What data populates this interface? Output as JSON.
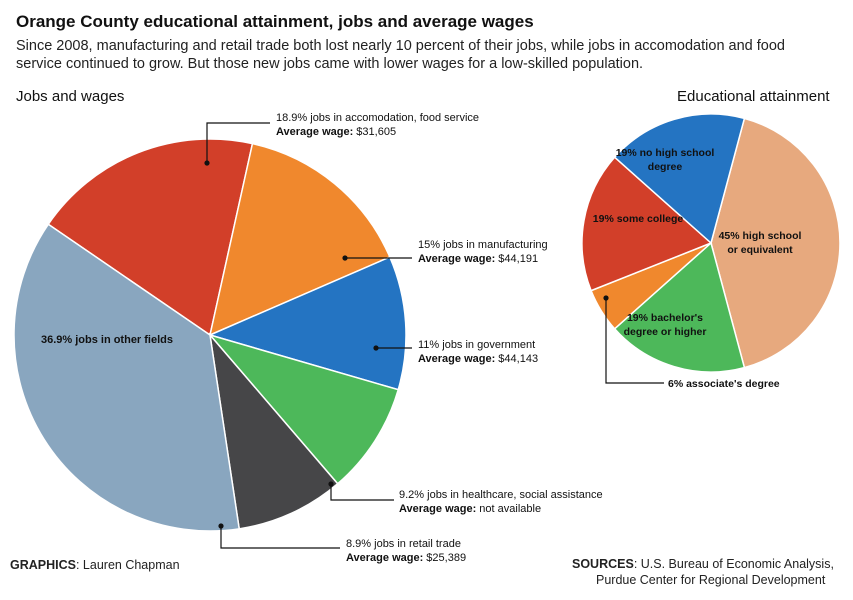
{
  "header": {
    "title": "Orange County educational attainment, jobs and average wages",
    "subtitle": "Since 2008, manufacturing and retail trade both lost nearly 10 percent of their jobs, while jobs in accomodation and food service continued to grow. But those new jobs came with lower wages for a low-skilled population."
  },
  "footer": {
    "graphics_label": "GRAPHICS",
    "graphics_name": ": Lauren Chapman",
    "sources_label": "SOURCES",
    "sources_line1": ": U.S. Bureau of Economic Analysis,",
    "sources_line2": "Purdue Center for Regional Development"
  },
  "chart_data": [
    {
      "type": "pie",
      "title": "Jobs and wages",
      "slices": [
        {
          "label": "18.9% jobs in accomodation, food service",
          "value": 18.9,
          "wage_label": "Average wage:",
          "wage": "$31,605",
          "color": "#d23f29"
        },
        {
          "label": "15% jobs in manufacturing",
          "value": 15,
          "wage_label": "Average wage:",
          "wage": "$44,191",
          "color": "#f0882d"
        },
        {
          "label": "11% jobs in government",
          "value": 11,
          "wage_label": "Average wage:",
          "wage": "$44,143",
          "color": "#2474c2"
        },
        {
          "label": "9.2% jobs in healthcare, social assistance",
          "value": 9.2,
          "wage_label": "Average wage:",
          "wage": "not available",
          "color": "#4db85a"
        },
        {
          "label": "8.9% jobs in retail trade",
          "value": 8.9,
          "wage_label": "Average wage:",
          "wage": "$25,389",
          "color": "#464648"
        },
        {
          "label": "36.9% jobs in other fields",
          "value": 36.9,
          "wage_label": "",
          "wage": "",
          "color": "#89a6bf"
        }
      ]
    },
    {
      "type": "pie",
      "title": "Educational attainment",
      "slices": [
        {
          "label": "45% high school or equivalent",
          "lines": [
            "45% high school",
            "or equivalent"
          ],
          "value": 45,
          "color": "#e7a97e"
        },
        {
          "label": "19% bachelor's degree or higher",
          "lines": [
            "19% bachelor's",
            "degree or higher"
          ],
          "value": 19,
          "color": "#4db85a"
        },
        {
          "label": "6% associate's degree",
          "lines": [
            "6% associate's degree"
          ],
          "value": 6,
          "color": "#f0882d"
        },
        {
          "label": "19% some college",
          "lines": [
            "19% some college"
          ],
          "value": 19,
          "color": "#d23f29"
        },
        {
          "label": "19% no high school degree",
          "lines": [
            "19% no high school",
            "degree"
          ],
          "value": 19,
          "color": "#2474c2"
        }
      ]
    }
  ]
}
